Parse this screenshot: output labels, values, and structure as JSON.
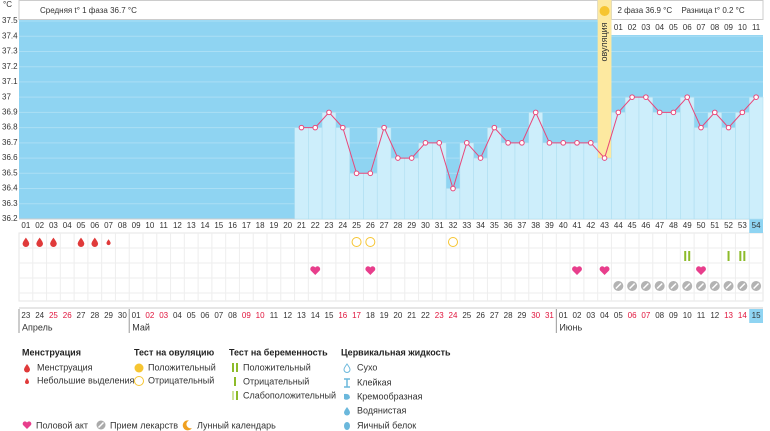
{
  "unit_label": "°C",
  "header": {
    "phase1": "Средняя t° 1 фаза 36.7 °C",
    "phase2": "2 фаза 36.9 °C",
    "diff": "Разница t° 0.2 °C"
  },
  "chart_data": {
    "type": "bar",
    "categories": [
      "01",
      "02",
      "03",
      "04",
      "05",
      "06",
      "07",
      "08",
      "09",
      "10",
      "11",
      "12",
      "13",
      "14",
      "15",
      "16",
      "17",
      "18",
      "19",
      "20",
      "21",
      "22",
      "23",
      "24",
      "25",
      "26",
      "27",
      "28",
      "29",
      "30",
      "31",
      "32",
      "33",
      "34",
      "35",
      "36",
      "37",
      "38",
      "39",
      "40",
      "41",
      "42",
      "43",
      "44",
      "45",
      "46",
      "47",
      "48",
      "49",
      "50",
      "51",
      "52",
      "53",
      "54"
    ],
    "values": [
      null,
      null,
      null,
      null,
      null,
      null,
      null,
      null,
      null,
      null,
      null,
      null,
      null,
      null,
      null,
      null,
      null,
      null,
      null,
      null,
      36.8,
      36.8,
      36.9,
      36.8,
      36.5,
      36.5,
      36.8,
      36.6,
      36.6,
      36.7,
      36.7,
      36.4,
      36.7,
      36.6,
      36.8,
      36.7,
      36.7,
      36.9,
      36.7,
      36.7,
      36.7,
      36.7,
      36.6,
      36.9,
      37.0,
      37.0,
      36.9,
      36.9,
      37.0,
      36.8,
      36.9,
      36.8,
      36.9,
      37.0
    ],
    "ylim": [
      36.2,
      37.5
    ],
    "yticks": [
      36.2,
      36.3,
      36.4,
      36.5,
      36.6,
      36.7,
      36.8,
      36.9,
      37,
      37.1,
      37.2,
      37.3,
      37.4,
      37.5
    ],
    "grid": true,
    "color": "#cdeefb",
    "line_color": "#e8477a",
    "ovulation": {
      "label": "овуляция",
      "day": 43
    },
    "phase2_days": [
      "01",
      "02",
      "03",
      "04",
      "05",
      "06",
      "07",
      "08",
      "09",
      "10",
      "11"
    ],
    "today_day": 54
  },
  "symbols": {
    "menstruation": [
      1,
      2,
      3,
      5,
      6
    ],
    "light_bleeding": [
      7
    ],
    "ovulation_negative": [
      25,
      26,
      32
    ],
    "pregnancy_positive": [
      49,
      53
    ],
    "pregnancy_negative": [
      52
    ],
    "sex": [
      22,
      26,
      41,
      43,
      50
    ],
    "medicine": [
      44,
      45,
      46,
      47,
      48,
      49,
      50,
      51,
      52,
      53,
      54
    ]
  },
  "dates": [
    {
      "label": "23"
    },
    {
      "label": "24"
    },
    {
      "label": "25",
      "red": true
    },
    {
      "label": "26",
      "red": true
    },
    {
      "label": "27"
    },
    {
      "label": "28"
    },
    {
      "label": "29"
    },
    {
      "label": "30"
    },
    {
      "label": "01"
    },
    {
      "label": "02",
      "red": true
    },
    {
      "label": "03",
      "red": true
    },
    {
      "label": "04"
    },
    {
      "label": "05"
    },
    {
      "label": "06"
    },
    {
      "label": "07"
    },
    {
      "label": "08"
    },
    {
      "label": "09",
      "red": true
    },
    {
      "label": "10",
      "red": true
    },
    {
      "label": "11"
    },
    {
      "label": "12"
    },
    {
      "label": "13"
    },
    {
      "label": "14"
    },
    {
      "label": "15"
    },
    {
      "label": "16",
      "red": true
    },
    {
      "label": "17",
      "red": true
    },
    {
      "label": "18"
    },
    {
      "label": "19"
    },
    {
      "label": "20"
    },
    {
      "label": "21"
    },
    {
      "label": "22"
    },
    {
      "label": "23",
      "red": true
    },
    {
      "label": "24",
      "red": true
    },
    {
      "label": "25"
    },
    {
      "label": "26"
    },
    {
      "label": "27"
    },
    {
      "label": "28"
    },
    {
      "label": "29"
    },
    {
      "label": "30",
      "red": true
    },
    {
      "label": "31",
      "red": true
    },
    {
      "label": "01"
    },
    {
      "label": "02"
    },
    {
      "label": "03"
    },
    {
      "label": "04"
    },
    {
      "label": "05"
    },
    {
      "label": "06",
      "red": true
    },
    {
      "label": "07",
      "red": true
    },
    {
      "label": "08"
    },
    {
      "label": "09"
    },
    {
      "label": "10"
    },
    {
      "label": "11"
    },
    {
      "label": "12"
    },
    {
      "label": "13",
      "red": true
    },
    {
      "label": "14",
      "red": true
    },
    {
      "label": "15"
    }
  ],
  "months": [
    {
      "label": "Апрель",
      "start_day": 1
    },
    {
      "label": "Май",
      "start_day": 9
    },
    {
      "label": "Июнь",
      "start_day": 40
    }
  ],
  "legend": {
    "menstruation": {
      "title": "Менструация",
      "items": [
        "Менструация",
        "Небольшие выделения"
      ]
    },
    "ovulation_test": {
      "title": "Тест на овуляцию",
      "items": [
        "Положительный",
        "Отрицательный"
      ]
    },
    "pregnancy_test": {
      "title": "Тест на беременность",
      "items": [
        "Положительный",
        "Отрицательный",
        "Слабоположительный"
      ]
    },
    "cervical": {
      "title": "Цервикальная жидкость",
      "items": [
        "Сухо",
        "Клейкая",
        "Кремообразная",
        "Водянистая",
        "Яичный белок"
      ]
    },
    "other": [
      "Половой акт",
      "Прием лекарств",
      "Лунный календарь"
    ]
  }
}
